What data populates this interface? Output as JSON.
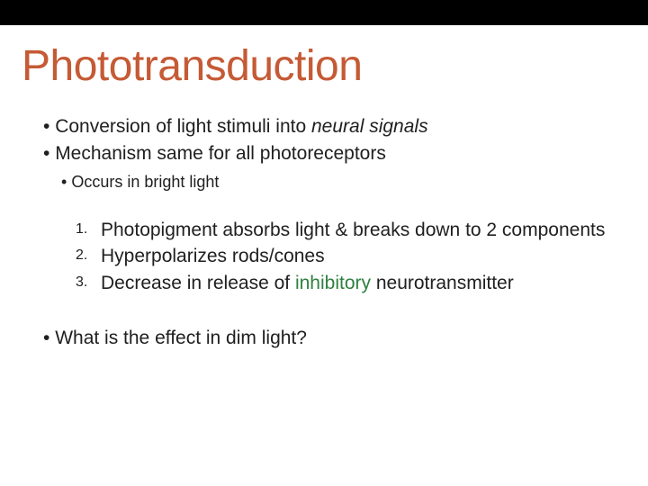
{
  "title": "Phototransduction",
  "title_color": "#c55a35",
  "topbar_color": "#000000",
  "bullets_level1": [
    {
      "pre": "Conversion of light stimuli into ",
      "italic": "neural signals",
      "post": ""
    },
    {
      "pre": "Mechanism same for all photoreceptors",
      "italic": "",
      "post": ""
    }
  ],
  "bullet_level2": "Occurs in bright light",
  "ordered_items": [
    {
      "num": "1.",
      "text": "Photopigment absorbs light & breaks down to 2 components"
    },
    {
      "num": "2.",
      "text": "Hyperpolarizes rods/cones"
    },
    {
      "num": "3.",
      "text_pre": "Decrease in release of ",
      "text_green": "inhibitory",
      "text_post": " neurotransmitter"
    }
  ],
  "bottom_bullet": "What is the effect in dim light?",
  "body_fontsize": 21,
  "sub_fontsize": 18,
  "title_fontsize": 48,
  "green_color": "#2e8040",
  "text_color": "#202020",
  "background": "#ffffff"
}
